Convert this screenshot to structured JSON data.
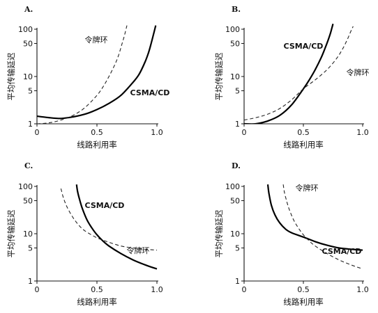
{
  "chart_data": [
    {
      "type": "line",
      "panel": "A.",
      "xlabel": "线路利用率",
      "ylabel": "平均传输延迟",
      "xlim": [
        0,
        1.0
      ],
      "ylim": [
        1,
        100
      ],
      "y_scale": "log",
      "x_ticks": [
        "0",
        "0.5",
        "1.0"
      ],
      "y_ticks": [
        "1",
        "5",
        "10",
        "50",
        "100"
      ],
      "series": [
        {
          "name": "CSMA/CD",
          "style": "solid",
          "x": [
            0,
            0.1,
            0.2,
            0.3,
            0.4,
            0.5,
            0.6,
            0.7,
            0.8,
            0.85,
            0.9,
            0.93,
            0.95,
            0.97,
            0.99
          ],
          "y": [
            1.45,
            1.35,
            1.3,
            1.4,
            1.6,
            2.0,
            2.7,
            4.0,
            7.5,
            11,
            20,
            32,
            48,
            75,
            120
          ]
        },
        {
          "name": "令牌环",
          "style": "dashed",
          "x": [
            0,
            0.1,
            0.2,
            0.3,
            0.4,
            0.5,
            0.55,
            0.6,
            0.65,
            0.68,
            0.71,
            0.73,
            0.75
          ],
          "y": [
            1.0,
            1.05,
            1.2,
            1.5,
            2.2,
            4.0,
            6.0,
            10,
            18,
            28,
            50,
            75,
            120
          ]
        }
      ],
      "labels": [
        {
          "series": "令牌环",
          "bold": false
        },
        {
          "series": "CSMA/CD",
          "bold": true
        }
      ]
    },
    {
      "type": "line",
      "panel": "B.",
      "xlabel": "线路利用率",
      "ylabel": "平均传输延迟",
      "xlim": [
        0,
        1.0
      ],
      "ylim": [
        1,
        100
      ],
      "y_scale": "log",
      "x_ticks": [
        "0",
        "0.5",
        "1.0"
      ],
      "y_ticks": [
        "1",
        "5",
        "10",
        "50",
        "100"
      ],
      "series": [
        {
          "name": "CSMA/CD",
          "style": "solid",
          "x": [
            0,
            0.1,
            0.2,
            0.3,
            0.4,
            0.5,
            0.55,
            0.6,
            0.65,
            0.68,
            0.71,
            0.73,
            0.74,
            0.75
          ],
          "y": [
            1.0,
            1.0,
            1.15,
            1.5,
            2.5,
            5.5,
            8.5,
            14,
            25,
            38,
            60,
            85,
            105,
            130
          ]
        },
        {
          "name": "令牌环",
          "style": "dashed",
          "x": [
            0,
            0.1,
            0.2,
            0.3,
            0.4,
            0.5,
            0.6,
            0.7,
            0.78,
            0.83,
            0.87,
            0.9,
            0.92
          ],
          "y": [
            1.2,
            1.35,
            1.6,
            2.1,
            3.2,
            5.5,
            8.5,
            14,
            24,
            38,
            60,
            90,
            115
          ]
        }
      ],
      "labels": [
        {
          "series": "CSMA/CD",
          "bold": true
        },
        {
          "series": "令牌环",
          "bold": false
        }
      ]
    },
    {
      "type": "line",
      "panel": "C.",
      "xlabel": "线路利用率",
      "ylabel": "平均传输延迟",
      "xlim": [
        0,
        1.0
      ],
      "ylim": [
        1,
        100
      ],
      "y_scale": "log",
      "x_ticks": [
        "0",
        "0.5",
        "1.0"
      ],
      "y_ticks": [
        "1",
        "5",
        "10",
        "50",
        "100"
      ],
      "series": [
        {
          "name": "CSMA/CD",
          "style": "solid",
          "x": [
            0.33,
            0.34,
            0.36,
            0.38,
            0.42,
            0.46,
            0.5,
            0.55,
            0.6,
            0.7,
            0.8,
            0.9,
            1.0
          ],
          "y": [
            110,
            75,
            48,
            33,
            19,
            13,
            9.5,
            7,
            5.5,
            3.8,
            2.8,
            2.2,
            1.8
          ]
        },
        {
          "name": "令牌环",
          "style": "dashed",
          "x": [
            0.2,
            0.22,
            0.25,
            0.3,
            0.35,
            0.4,
            0.5,
            0.6,
            0.7,
            0.8,
            0.9,
            1.0
          ],
          "y": [
            90,
            58,
            37,
            22,
            15,
            11.5,
            8.2,
            6.6,
            5.5,
            5.0,
            4.7,
            4.5
          ]
        }
      ],
      "labels": [
        {
          "series": "CSMA/CD",
          "bold": true
        },
        {
          "series": "令牌环",
          "bold": false
        }
      ]
    },
    {
      "type": "line",
      "panel": "D.",
      "xlabel": "线路利用率",
      "ylabel": "平均传输延迟",
      "xlim": [
        0,
        1.0
      ],
      "ylim": [
        1,
        100
      ],
      "y_scale": "log",
      "x_ticks": [
        "0",
        "0.5",
        "1.0"
      ],
      "y_ticks": [
        "1",
        "5",
        "10",
        "50",
        "100"
      ],
      "series": [
        {
          "name": "CSMA/CD",
          "style": "solid",
          "x": [
            0.2,
            0.21,
            0.23,
            0.26,
            0.3,
            0.35,
            0.4,
            0.5,
            0.6,
            0.7,
            0.8,
            0.9,
            1.0
          ],
          "y": [
            110,
            70,
            40,
            25,
            17,
            12.5,
            10.5,
            8.5,
            6.8,
            5.7,
            5.0,
            4.7,
            4.5
          ]
        },
        {
          "name": "令牌环",
          "style": "dashed",
          "x": [
            0.33,
            0.34,
            0.36,
            0.38,
            0.42,
            0.46,
            0.5,
            0.55,
            0.6,
            0.7,
            0.8,
            0.9,
            1.0
          ],
          "y": [
            110,
            75,
            48,
            33,
            19,
            13,
            9.5,
            7,
            5.5,
            3.8,
            2.8,
            2.2,
            1.8
          ]
        }
      ],
      "labels": [
        {
          "series": "令牌环",
          "bold": false
        },
        {
          "series": "CSMA/CD",
          "bold": true
        }
      ]
    }
  ]
}
